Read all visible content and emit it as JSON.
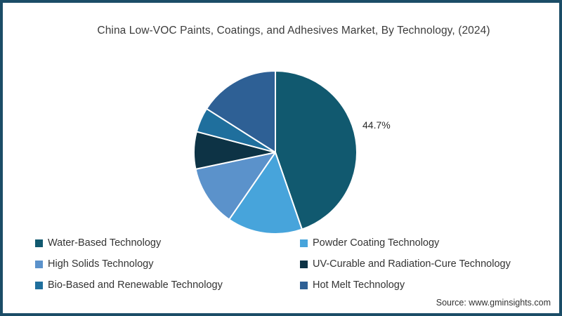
{
  "title": "China Low-VOC Paints, Coatings, and Adhesives Market, By Technology, (2024)",
  "source": "Source: www.gminsights.com",
  "frame_border_color": "#1B4D67",
  "chart_data": {
    "type": "pie",
    "title": "China Low-VOC Paints, Coatings, and Adhesives Market, By Technology, (2024)",
    "start_angle_deg": 0,
    "direction": "clockwise",
    "legend_position": "bottom",
    "slice_stroke_color": "#ffffff",
    "labeled_slice": "Water-Based Technology",
    "series": [
      {
        "id": "water-based",
        "name": "Water-Based Technology",
        "value": 44.7,
        "color": "#11596F",
        "label": "44.7%"
      },
      {
        "id": "powder-coating",
        "name": "Powder Coating Technology",
        "value": 14.9,
        "color": "#47A4DB",
        "label": ""
      },
      {
        "id": "high-solids",
        "name": "High Solids Technology",
        "value": 12.1,
        "color": "#5B92CB",
        "label": ""
      },
      {
        "id": "uv-curable",
        "name": "UV-Curable and Radiation-Cure Technology",
        "value": 7.4,
        "color": "#0D3345",
        "label": ""
      },
      {
        "id": "bio-based",
        "name": "Bio-Based and Renewable Technology",
        "value": 4.9,
        "color": "#1F6F9D",
        "label": ""
      },
      {
        "id": "hot-melt",
        "name": "Hot Melt Technology",
        "value": 16.0,
        "color": "#2E6095",
        "label": ""
      }
    ]
  }
}
